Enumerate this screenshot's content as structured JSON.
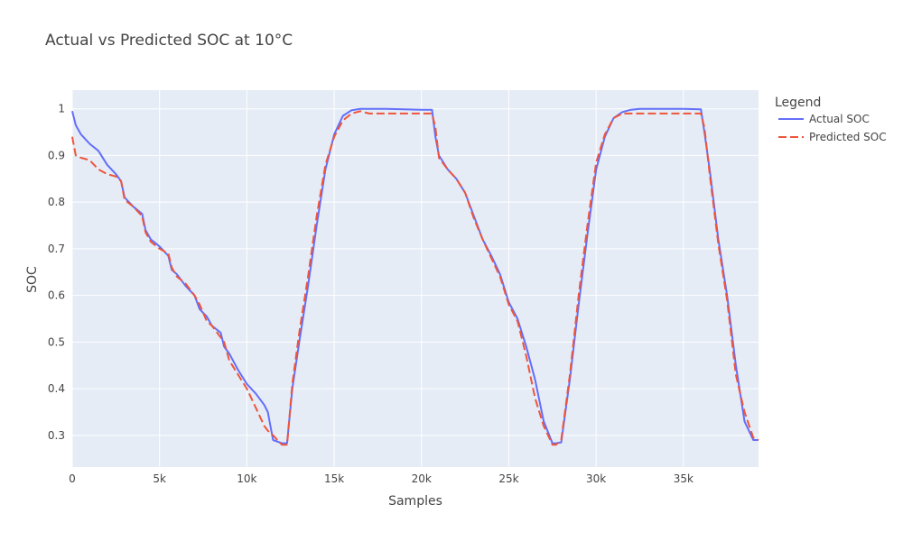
{
  "chart_data": {
    "type": "line",
    "title": "Actual vs Predicted SOC at 10°C",
    "xlabel": "Samples",
    "ylabel": "SOC",
    "xlim": [
      0,
      39300
    ],
    "ylim": [
      0.232,
      1.04
    ],
    "x_ticks": [
      0,
      5000,
      10000,
      15000,
      20000,
      25000,
      30000,
      35000
    ],
    "x_tick_labels": [
      "0",
      "5k",
      "10k",
      "15k",
      "20k",
      "25k",
      "30k",
      "35k"
    ],
    "y_ticks": [
      0.3,
      0.4,
      0.5,
      0.6,
      0.7,
      0.8,
      0.9,
      1
    ],
    "y_tick_labels": [
      "0.3",
      "0.4",
      "0.5",
      "0.6",
      "0.7",
      "0.8",
      "0.9",
      "1"
    ],
    "grid": true,
    "legend": {
      "title": "Legend",
      "position": "right"
    },
    "series": [
      {
        "name": "Actual SOC",
        "color": "#636efa",
        "dash": "solid",
        "x": [
          0,
          200,
          500,
          1000,
          1500,
          2000,
          2500,
          2800,
          3000,
          3500,
          4000,
          4200,
          4500,
          5000,
          5500,
          5700,
          6000,
          6500,
          7000,
          7300,
          7700,
          8000,
          8500,
          8700,
          9000,
          9500,
          10000,
          10500,
          11000,
          11200,
          11500,
          12000,
          12300,
          12600,
          13000,
          13500,
          14000,
          14500,
          15000,
          15500,
          16000,
          16500,
          17000,
          18000,
          19000,
          20000,
          20600,
          20800,
          21000,
          21500,
          22000,
          22500,
          23000,
          23500,
          24000,
          24500,
          25000,
          25500,
          26000,
          26500,
          27000,
          27500,
          27700,
          28000,
          28500,
          29000,
          29500,
          30000,
          30500,
          31000,
          31500,
          32000,
          32500,
          33000,
          34000,
          35000,
          36000,
          36200,
          36500,
          37000,
          37500,
          38000,
          38500,
          39000,
          39300
        ],
        "y": [
          0.995,
          0.965,
          0.945,
          0.925,
          0.91,
          0.88,
          0.86,
          0.845,
          0.81,
          0.79,
          0.775,
          0.74,
          0.72,
          0.705,
          0.685,
          0.655,
          0.645,
          0.62,
          0.6,
          0.57,
          0.555,
          0.535,
          0.52,
          0.49,
          0.475,
          0.44,
          0.41,
          0.39,
          0.365,
          0.35,
          0.29,
          0.283,
          0.283,
          0.4,
          0.5,
          0.62,
          0.75,
          0.87,
          0.945,
          0.985,
          0.997,
          1.0,
          1.0,
          1.0,
          0.999,
          0.998,
          0.998,
          0.94,
          0.9,
          0.87,
          0.85,
          0.82,
          0.77,
          0.72,
          0.685,
          0.645,
          0.585,
          0.55,
          0.49,
          0.42,
          0.33,
          0.283,
          0.283,
          0.285,
          0.42,
          0.58,
          0.73,
          0.87,
          0.94,
          0.98,
          0.993,
          0.998,
          1.0,
          1.0,
          1.0,
          1.0,
          0.999,
          0.95,
          0.87,
          0.72,
          0.6,
          0.45,
          0.33,
          0.29,
          0.29
        ]
      },
      {
        "name": "Predicted SOC",
        "color": "#ef553b",
        "dash": "dash",
        "x": [
          0,
          200,
          500,
          1000,
          1500,
          2000,
          2500,
          2800,
          3000,
          3500,
          4000,
          4200,
          4500,
          5000,
          5500,
          5700,
          6000,
          6500,
          7000,
          7300,
          7700,
          8000,
          8500,
          8700,
          9000,
          9500,
          10000,
          10500,
          11000,
          11200,
          11500,
          12000,
          12300,
          12600,
          13000,
          13500,
          14000,
          14500,
          15000,
          15500,
          16000,
          16500,
          17000,
          18000,
          19000,
          20000,
          20600,
          20800,
          21000,
          21500,
          22000,
          22500,
          23000,
          23500,
          24000,
          24500,
          25000,
          25500,
          26000,
          26500,
          27000,
          27500,
          27700,
          28000,
          28500,
          29000,
          29500,
          30000,
          30500,
          31000,
          31500,
          32000,
          32500,
          33000,
          34000,
          35000,
          36000,
          36200,
          36500,
          37000,
          37500,
          38000,
          38500,
          39000,
          39300
        ],
        "y": [
          0.94,
          0.9,
          0.895,
          0.89,
          0.87,
          0.86,
          0.855,
          0.845,
          0.805,
          0.79,
          0.77,
          0.735,
          0.715,
          0.7,
          0.69,
          0.66,
          0.64,
          0.625,
          0.6,
          0.58,
          0.545,
          0.535,
          0.51,
          0.5,
          0.46,
          0.43,
          0.4,
          0.36,
          0.32,
          0.31,
          0.3,
          0.28,
          0.28,
          0.41,
          0.52,
          0.64,
          0.77,
          0.88,
          0.94,
          0.975,
          0.99,
          0.995,
          0.99,
          0.99,
          0.99,
          0.99,
          0.99,
          0.96,
          0.895,
          0.87,
          0.85,
          0.82,
          0.765,
          0.72,
          0.68,
          0.64,
          0.58,
          0.545,
          0.47,
          0.38,
          0.32,
          0.28,
          0.28,
          0.29,
          0.43,
          0.6,
          0.75,
          0.885,
          0.945,
          0.98,
          0.99,
          0.99,
          0.99,
          0.99,
          0.99,
          0.99,
          0.99,
          0.96,
          0.86,
          0.71,
          0.59,
          0.43,
          0.35,
          0.295,
          0.29
        ]
      }
    ]
  }
}
